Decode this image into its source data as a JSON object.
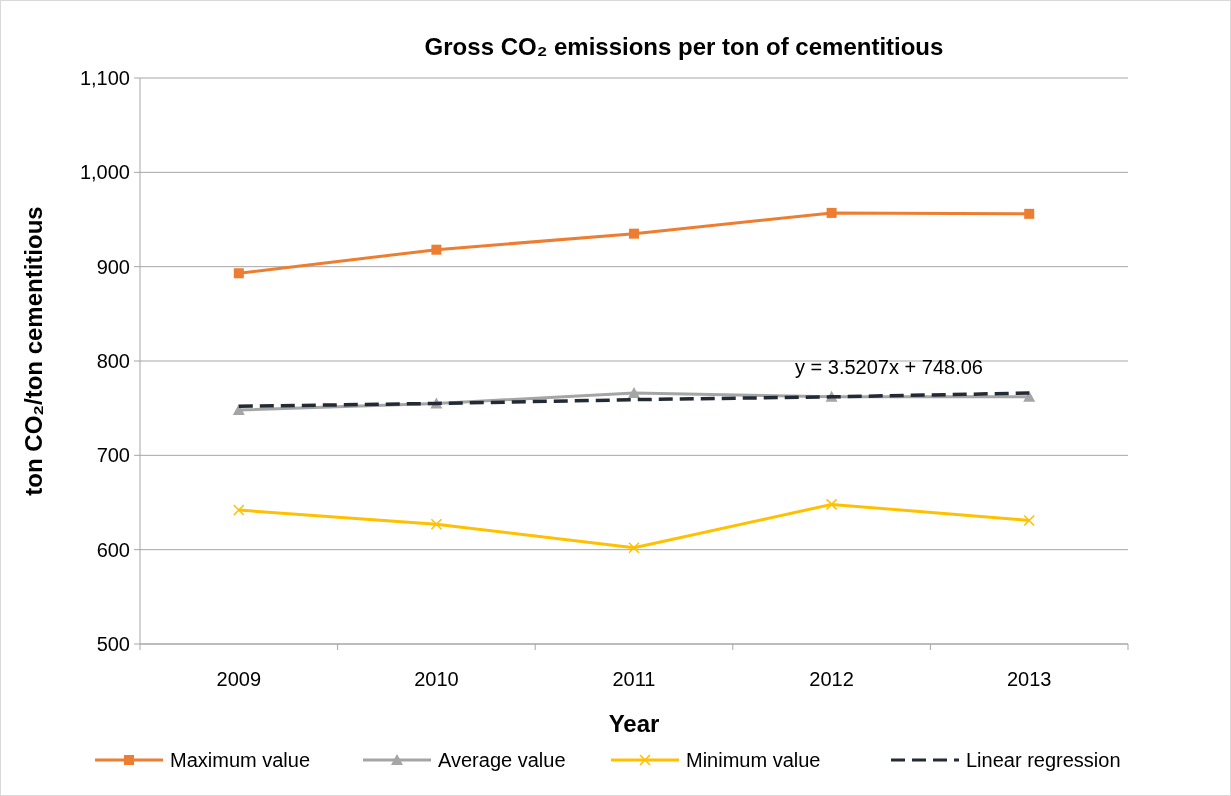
{
  "chart_data": {
    "type": "line",
    "title": "Gross CO₂ emissions per ton of cementitious",
    "xlabel": "Year",
    "ylabel": "ton CO₂/ton cementitious",
    "categories": [
      "2009",
      "2010",
      "2011",
      "2012",
      "2013"
    ],
    "series": [
      {
        "name": "Maximum value",
        "color": "#ed7d31",
        "marker": "square",
        "values": [
          893,
          918,
          935,
          957,
          956
        ]
      },
      {
        "name": "Average value",
        "color": "#a5a5a5",
        "marker": "triangle",
        "values": [
          748,
          755,
          766,
          762,
          762
        ]
      },
      {
        "name": "Minimum value",
        "color": "#ffc000",
        "marker": "cross",
        "values": [
          642,
          627,
          602,
          648,
          631
        ]
      },
      {
        "name": "Linear regression",
        "color": "#222a35",
        "marker": "none",
        "line_style": "dashed",
        "values": [
          752,
          755,
          759,
          762,
          766
        ]
      }
    ],
    "annotations": [
      "y = 3.5207x + 748.06"
    ],
    "ylim": [
      500,
      1100
    ],
    "yticks": [
      {
        "value": 500,
        "label": "500"
      },
      {
        "value": 600,
        "label": "600"
      },
      {
        "value": 700,
        "label": "700"
      },
      {
        "value": 800,
        "label": "800"
      },
      {
        "value": 900,
        "label": "900"
      },
      {
        "value": 1000,
        "label": "1,000"
      },
      {
        "value": 1100,
        "label": "1,100"
      }
    ],
    "grid": "y",
    "legend": "bottom"
  }
}
